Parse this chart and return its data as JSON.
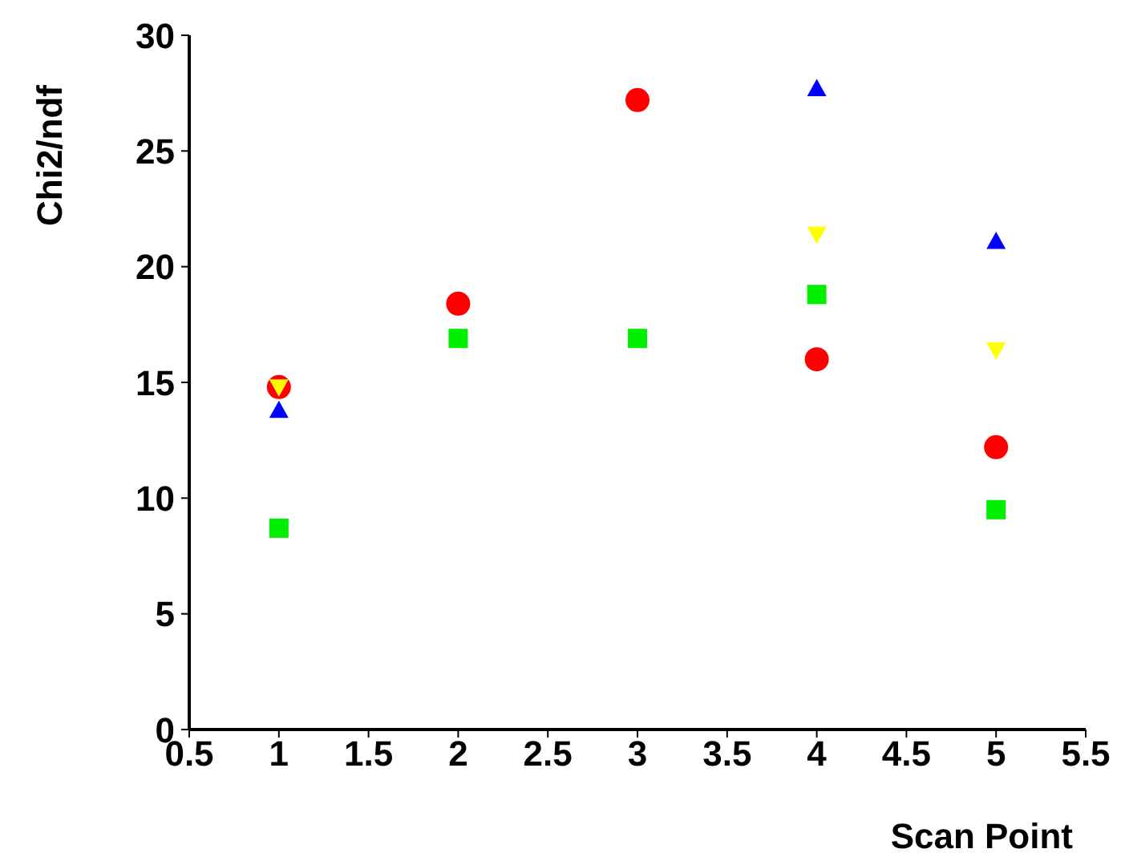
{
  "chart_data": {
    "type": "scatter",
    "xlabel": "Scan Point",
    "ylabel": "Chi2/ndf",
    "xlim": [
      0.5,
      5.5
    ],
    "xticks": [
      0.5,
      1,
      1.5,
      2,
      2.5,
      3,
      3.5,
      4,
      4.5,
      5,
      5.5
    ],
    "ylim": [
      0,
      30
    ],
    "yticks": [
      0,
      5,
      10,
      15,
      20,
      25,
      30
    ],
    "grid": false,
    "legend": false,
    "series": [
      {
        "color": "#00ee00",
        "marker": "square",
        "x": [
          1,
          2,
          3,
          4,
          5
        ],
        "values": [
          8.7,
          16.9,
          16.9,
          18.8,
          9.5
        ]
      },
      {
        "color": "#0000ff",
        "marker": "triangle",
        "x": [
          1,
          4,
          5
        ],
        "values": [
          13.8,
          27.7,
          21.1
        ]
      },
      {
        "color": "#ff0000",
        "marker": "circle",
        "x": [
          1,
          2,
          3,
          4,
          5
        ],
        "values": [
          14.8,
          18.4,
          27.2,
          16.0,
          12.2
        ]
      },
      {
        "color": "#ffff00",
        "marker": "triangle-down",
        "x": [
          1,
          4,
          5
        ],
        "values": [
          14.8,
          21.4,
          16.4
        ]
      }
    ]
  }
}
